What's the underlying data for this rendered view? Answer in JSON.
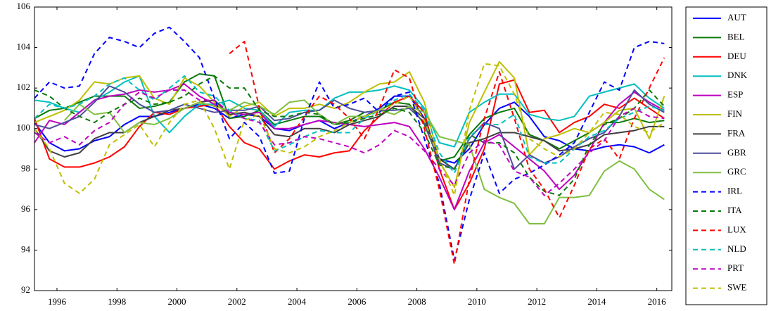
{
  "chart_data": {
    "type": "line",
    "x": [
      1995.25,
      1995.75,
      1996.25,
      1996.75,
      1997.25,
      1997.75,
      1998.25,
      1998.75,
      1999.25,
      1999.75,
      2000.25,
      2000.75,
      2001.25,
      2001.75,
      2002.25,
      2002.75,
      2003.25,
      2003.75,
      2004.25,
      2004.75,
      2005.25,
      2005.75,
      2006.25,
      2006.75,
      2007.25,
      2007.75,
      2008.25,
      2008.75,
      2009.25,
      2009.75,
      2010.25,
      2010.75,
      2011.25,
      2011.75,
      2012.25,
      2012.75,
      2013.25,
      2013.75,
      2014.25,
      2014.75,
      2015.25,
      2015.75,
      2016.25
    ],
    "xlim": [
      1995.25,
      2016.5
    ],
    "xticks": [
      1996,
      1998,
      2000,
      2002,
      2004,
      2006,
      2008,
      2010,
      2012,
      2014,
      2016
    ],
    "ylim": [
      92,
      106
    ],
    "yticks": [
      92,
      94,
      96,
      98,
      100,
      102,
      104,
      106
    ],
    "legend": "outside-right",
    "series": [
      {
        "name": "AUT",
        "color": "#0000ff",
        "style": "solid",
        "values": [
          100.3,
          99.3,
          98.9,
          99.0,
          99.4,
          99.6,
          100.2,
          100.6,
          100.6,
          100.8,
          101.0,
          101.2,
          101.0,
          100.5,
          100.7,
          100.6,
          100.0,
          99.9,
          100.2,
          100.4,
          100.0,
          100.3,
          100.6,
          101.0,
          101.6,
          101.6,
          100.5,
          98.5,
          98.3,
          99.0,
          100.2,
          101.0,
          101.3,
          100.6,
          99.6,
          99.4,
          99.0,
          98.9,
          99.1,
          99.2,
          99.1,
          98.8,
          99.2
        ]
      },
      {
        "name": "BEL",
        "color": "#0a7a0a",
        "style": "solid",
        "values": [
          100.5,
          100.9,
          101.0,
          101.3,
          101.6,
          101.6,
          101.6,
          101.0,
          101.1,
          101.3,
          102.3,
          102.7,
          102.6,
          100.5,
          100.6,
          100.9,
          100.2,
          100.4,
          100.6,
          100.6,
          100.2,
          100.4,
          100.8,
          100.9,
          101.3,
          101.2,
          100.2,
          98.4,
          98.6,
          99.7,
          100.5,
          100.8,
          101.0,
          99.7,
          99.4,
          99.0,
          99.4,
          99.8,
          100.3,
          100.3,
          100.5,
          100.3,
          100.4
        ]
      },
      {
        "name": "DEU",
        "color": "#ff0000",
        "style": "solid",
        "values": [
          100.5,
          98.5,
          98.1,
          98.1,
          98.3,
          98.6,
          99.1,
          100.1,
          100.8,
          100.7,
          101.0,
          101.1,
          101.2,
          100.1,
          99.3,
          99.0,
          98.0,
          98.4,
          98.7,
          98.6,
          98.8,
          98.9,
          99.9,
          100.6,
          101.3,
          101.6,
          100.8,
          98.0,
          96.0,
          97.3,
          99.0,
          102.2,
          102.4,
          100.8,
          100.9,
          99.8,
          100.3,
          100.6,
          101.2,
          101.0,
          101.5,
          101.0,
          100.5
        ]
      },
      {
        "name": "DNK",
        "color": "#00bfbf",
        "style": "solid",
        "values": [
          101.4,
          101.3,
          101.0,
          100.8,
          101.4,
          101.8,
          102.3,
          102.6,
          100.6,
          99.8,
          100.6,
          101.2,
          101.2,
          101.4,
          101.0,
          100.9,
          100.1,
          100.8,
          100.9,
          100.9,
          101.5,
          101.8,
          101.8,
          101.9,
          102.1,
          101.9,
          101.0,
          99.3,
          99.1,
          100.8,
          101.3,
          101.7,
          101.7,
          100.7,
          100.5,
          100.4,
          100.6,
          101.6,
          101.8,
          102.0,
          102.2,
          101.5,
          101.0
        ]
      },
      {
        "name": "ESP",
        "color": "#bf00bf",
        "style": "solid",
        "values": [
          99.3,
          100.4,
          100.2,
          100.8,
          101.4,
          101.6,
          101.7,
          101.9,
          101.8,
          101.9,
          102.2,
          101.6,
          101.2,
          100.8,
          100.7,
          100.8,
          100.0,
          100.0,
          100.2,
          100.4,
          100.3,
          100.2,
          100.1,
          100.2,
          100.3,
          100.1,
          99.0,
          97.6,
          96.0,
          97.9,
          99.3,
          99.7,
          99.1,
          98.5,
          97.9,
          97.0,
          97.7,
          98.9,
          100.3,
          101.2,
          101.8,
          101.3,
          100.9
        ]
      },
      {
        "name": "FIN",
        "color": "#bfbf00",
        "style": "solid",
        "values": [
          100.3,
          100.6,
          100.9,
          101.4,
          102.3,
          102.2,
          102.5,
          102.6,
          101.5,
          101.2,
          102.5,
          102.1,
          101.3,
          100.6,
          101.1,
          101.3,
          100.6,
          101.0,
          101.0,
          101.2,
          101.0,
          101.3,
          101.8,
          102.2,
          102.3,
          102.8,
          101.3,
          98.4,
          97.1,
          100.3,
          101.8,
          103.3,
          102.5,
          98.7,
          99.5,
          99.7,
          100.0,
          99.8,
          100.3,
          100.9,
          101.0,
          99.5,
          101.6
        ]
      },
      {
        "name": "FRA",
        "color": "#404040",
        "style": "solid",
        "values": [
          100.0,
          98.9,
          98.6,
          98.8,
          99.5,
          99.8,
          99.8,
          100.3,
          100.6,
          100.9,
          101.0,
          101.3,
          101.4,
          100.7,
          100.8,
          100.6,
          99.7,
          99.6,
          100.0,
          100.0,
          99.8,
          100.2,
          100.4,
          100.6,
          101.1,
          101.1,
          100.5,
          98.5,
          98.0,
          99.3,
          99.5,
          99.8,
          99.8,
          99.6,
          99.4,
          98.9,
          99.0,
          99.2,
          99.7,
          99.8,
          99.9,
          100.1,
          100.1
        ]
      },
      {
        "name": "GBR",
        "color": "#4d4d99",
        "style": "solid",
        "values": [
          100.2,
          100.0,
          100.3,
          100.6,
          101.3,
          102.1,
          101.8,
          101.2,
          100.8,
          100.9,
          101.2,
          101.0,
          100.8,
          100.9,
          100.9,
          101.1,
          100.4,
          100.5,
          100.8,
          100.9,
          101.4,
          101.0,
          100.8,
          100.9,
          100.9,
          101.0,
          100.3,
          98.3,
          98.0,
          99.5,
          100.3,
          100.0,
          98.0,
          98.7,
          98.3,
          98.6,
          99.1,
          99.5,
          99.8,
          100.6,
          101.9,
          101.2,
          100.8
        ]
      },
      {
        "name": "GRC",
        "color": "#80bf40",
        "style": "solid",
        "values": [
          null,
          null,
          100.4,
          101.2,
          100.7,
          100.8,
          99.8,
          100.3,
          100.2,
          100.5,
          101.0,
          101.3,
          101.1,
          100.9,
          101.3,
          101.1,
          100.7,
          101.3,
          101.4,
          100.7,
          100.2,
          100.6,
          100.6,
          100.9,
          100.7,
          101.1,
          100.8,
          99.6,
          99.4,
          99.2,
          97.0,
          96.6,
          96.3,
          95.3,
          95.3,
          96.6,
          96.6,
          96.7,
          97.9,
          98.4,
          98.0,
          97.0,
          96.5
        ]
      },
      {
        "name": "IRL",
        "color": "#0000ff",
        "style": "dashed",
        "values": [
          101.5,
          102.3,
          102.0,
          102.1,
          103.7,
          104.5,
          104.3,
          104.0,
          104.7,
          105.0,
          104.3,
          103.5,
          101.5,
          99.5,
          100.3,
          99.6,
          97.8,
          97.9,
          100.5,
          102.3,
          101.0,
          101.2,
          101.5,
          100.8,
          101.6,
          101.8,
          99.5,
          97.3,
          93.5,
          96.5,
          98.8,
          96.8,
          97.5,
          97.8,
          98.2,
          98.7,
          99.3,
          100.8,
          102.3,
          101.9,
          104.0,
          104.3,
          104.2
        ]
      },
      {
        "name": "ITA",
        "color": "#0a7a0a",
        "style": "dashed",
        "values": [
          101.9,
          101.6,
          101.0,
          100.6,
          100.3,
          100.8,
          101.2,
          101.5,
          101.2,
          101.3,
          101.6,
          102.2,
          102.6,
          102.0,
          102.0,
          100.9,
          100.6,
          100.6,
          100.8,
          100.7,
          100.2,
          100.3,
          100.5,
          100.7,
          101.0,
          100.8,
          99.8,
          98.2,
          98.0,
          99.7,
          99.3,
          99.3,
          98.8,
          97.6,
          96.9,
          96.7,
          97.5,
          99.2,
          100.2,
          100.5,
          101.0,
          101.9,
          101.1
        ]
      },
      {
        "name": "LUX",
        "color": "#ff0000",
        "style": "dashed",
        "values": [
          null,
          null,
          null,
          null,
          null,
          null,
          null,
          null,
          null,
          null,
          null,
          null,
          null,
          103.7,
          104.3,
          101.0,
          98.8,
          99.5,
          100.6,
          101.6,
          101.2,
          100.5,
          99.5,
          101.0,
          102.9,
          102.5,
          100.0,
          97.0,
          93.3,
          97.5,
          100.5,
          102.8,
          100.5,
          98.0,
          97.0,
          95.6,
          97.2,
          99.0,
          99.5,
          98.5,
          100.5,
          102.0,
          103.5
        ]
      },
      {
        "name": "NLD",
        "color": "#00bfbf",
        "style": "dashed",
        "values": [
          100.5,
          101.2,
          101.0,
          101.2,
          101.6,
          102.2,
          102.5,
          101.9,
          101.4,
          102.0,
          102.6,
          101.8,
          101.6,
          100.9,
          100.5,
          100.4,
          98.9,
          99.2,
          99.6,
          99.9,
          99.8,
          99.8,
          100.5,
          100.9,
          101.4,
          101.7,
          100.9,
          98.8,
          97.8,
          99.6,
          100.2,
          100.2,
          100.7,
          98.6,
          98.3,
          98.3,
          99.0,
          99.6,
          99.9,
          100.5,
          100.8,
          101.1,
          100.9
        ]
      },
      {
        "name": "PRT",
        "color": "#bf00bf",
        "style": "dashed",
        "values": [
          99.8,
          99.3,
          99.6,
          99.2,
          99.9,
          100.3,
          101.2,
          101.8,
          101.5,
          101.9,
          101.9,
          101.4,
          101.4,
          100.8,
          100.5,
          100.3,
          99.2,
          99.3,
          99.6,
          99.5,
          99.3,
          99.1,
          98.8,
          99.2,
          99.9,
          99.6,
          98.9,
          98.0,
          97.2,
          98.8,
          99.4,
          99.2,
          97.9,
          97.6,
          96.7,
          97.3,
          98.0,
          98.8,
          99.4,
          100.6,
          101.0,
          100.6,
          100.5
        ]
      },
      {
        "name": "SWE",
        "color": "#bfbf00",
        "style": "dashed",
        "values": [
          100.0,
          99.0,
          97.3,
          96.8,
          97.5,
          99.2,
          99.7,
          100.2,
          99.1,
          100.3,
          101.2,
          101.4,
          100.0,
          98.0,
          100.4,
          100.7,
          99.0,
          98.8,
          99.1,
          99.6,
          99.9,
          100.3,
          100.6,
          100.9,
          101.2,
          101.6,
          100.4,
          98.5,
          96.7,
          100.9,
          103.2,
          103.1,
          101.7,
          99.5,
          99.0,
          98.6,
          99.0,
          99.8,
          100.8,
          100.7,
          100.1,
          99.8,
          100.3
        ]
      }
    ]
  }
}
